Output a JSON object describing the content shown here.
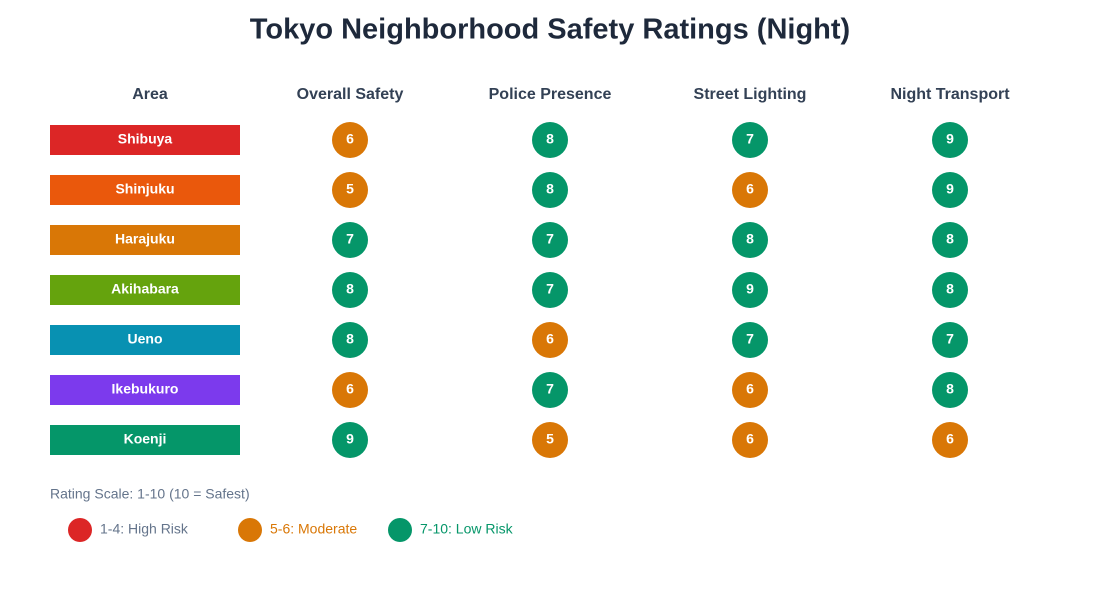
{
  "title": "Tokyo Neighborhood Safety Ratings (Night)",
  "table": {
    "columns": [
      "Area",
      "Overall Safety",
      "Police Presence",
      "Street Lighting",
      "Night Transport"
    ],
    "rows": [
      {
        "area": "Shibuya",
        "color": "#dc2626",
        "ratings": [
          6,
          8,
          7,
          9
        ]
      },
      {
        "area": "Shinjuku",
        "color": "#ea580c",
        "ratings": [
          5,
          8,
          6,
          9
        ]
      },
      {
        "area": "Harajuku",
        "color": "#d97706",
        "ratings": [
          7,
          7,
          8,
          8
        ]
      },
      {
        "area": "Akihabara",
        "color": "#65a30d",
        "ratings": [
          8,
          7,
          9,
          8
        ]
      },
      {
        "area": "Ueno",
        "color": "#0891b2",
        "ratings": [
          8,
          6,
          7,
          7
        ]
      },
      {
        "area": "Ikebukuro",
        "color": "#7c3aed",
        "ratings": [
          6,
          7,
          6,
          8
        ]
      },
      {
        "area": "Koenji",
        "color": "#059669",
        "ratings": [
          9,
          5,
          6,
          6
        ]
      }
    ]
  },
  "scale_note": "Rating Scale: 1-10 (10 = Safest)",
  "legend": [
    {
      "label": "1-4: High Risk",
      "min": 1,
      "max": 4,
      "color": "#dc2626",
      "text_color": "#64748b"
    },
    {
      "label": "5-6: Moderate",
      "min": 5,
      "max": 6,
      "color": "#d97706",
      "text_color": "#d97706"
    },
    {
      "label": "7-10: Low Risk",
      "min": 7,
      "max": 10,
      "color": "#059669",
      "text_color": "#059669"
    }
  ]
}
